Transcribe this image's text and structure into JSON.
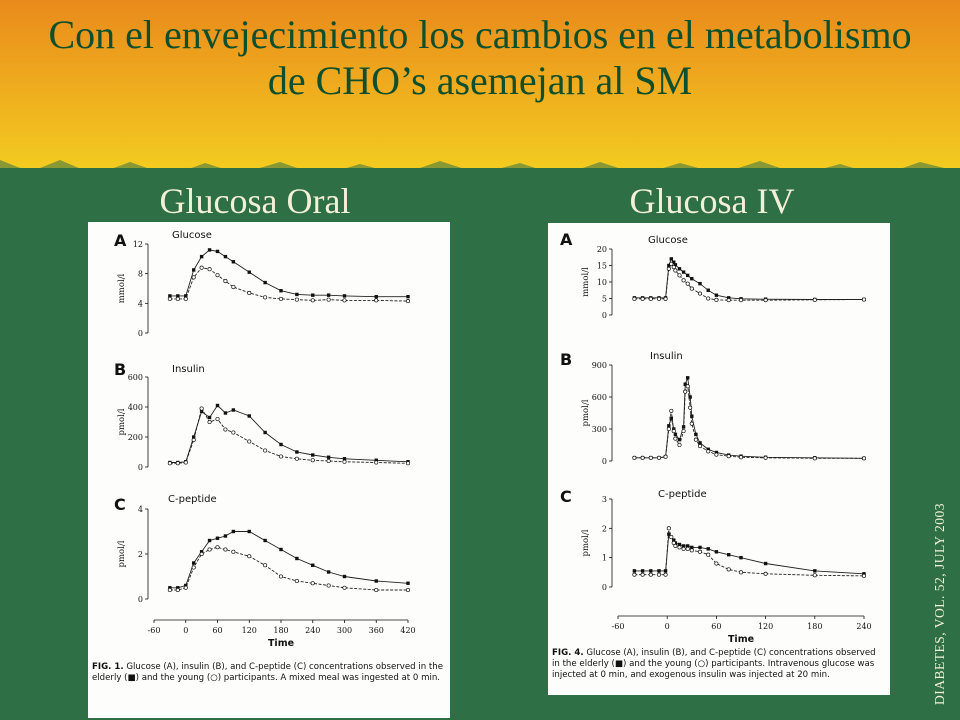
{
  "title": "Con el envejecimiento los cambios en el metabolismo de CHO’s asemejan al SM",
  "headers": {
    "left": "Glucosa Oral",
    "right": "Glucosa IV"
  },
  "source": "DIABETES, VOL. 52, JULY 2003",
  "colors": {
    "green": "#2f6f45",
    "orange": "#e8951c",
    "yellow": "#f1c31c",
    "title": "#0f4f2c"
  },
  "captions": {
    "left": {
      "label": "FIG. 1.",
      "text": "Glucose (A), insulin (B), and C-peptide (C) concentrations observed in the elderly (■) and the young (○) participants. A mixed meal was ingested at 0 min."
    },
    "right": {
      "label": "FIG. 4.",
      "text": "Glucose (A), insulin (B), and C-peptide (C) concentrations observed in the elderly (■) and the young (○) participants. Intravenous glucose was injected at 0 min, and exogenous insulin was injected at 20 min."
    }
  },
  "chart_data": [
    {
      "type": "line",
      "figure": "FIG. 1.",
      "xlabel": "Time",
      "xlim": [
        -60,
        420
      ],
      "xticks": [
        -60,
        0,
        60,
        120,
        180,
        240,
        300,
        360,
        420
      ],
      "panels": [
        {
          "letter": "A",
          "title": "Glucose",
          "ylabel": "mmol/l",
          "ylim": [
            0,
            12
          ],
          "yticks": [
            0,
            4,
            8,
            12
          ],
          "x": [
            -30,
            -15,
            0,
            15,
            30,
            45,
            60,
            75,
            90,
            120,
            150,
            180,
            210,
            240,
            270,
            300,
            360,
            420
          ],
          "series": [
            {
              "name": "elderly",
              "marker": "square",
              "values": [
                5.0,
                5.0,
                5.0,
                8.5,
                10.3,
                11.2,
                11.0,
                10.3,
                9.6,
                8.2,
                6.8,
                5.7,
                5.2,
                5.1,
                5.1,
                5.0,
                4.9,
                4.9
              ]
            },
            {
              "name": "young",
              "marker": "circle",
              "values": [
                4.6,
                4.6,
                4.6,
                7.5,
                8.8,
                8.6,
                7.8,
                7.0,
                6.2,
                5.4,
                4.8,
                4.6,
                4.5,
                4.4,
                4.5,
                4.4,
                4.4,
                4.3
              ]
            }
          ]
        },
        {
          "letter": "B",
          "title": "Insulin",
          "ylabel": "pmol/l",
          "ylim": [
            0,
            600
          ],
          "yticks": [
            0,
            200,
            400,
            600
          ],
          "x": [
            -30,
            -15,
            0,
            15,
            30,
            45,
            60,
            75,
            90,
            120,
            150,
            180,
            210,
            240,
            270,
            300,
            360,
            420
          ],
          "series": [
            {
              "name": "elderly",
              "marker": "square",
              "values": [
                30,
                30,
                35,
                200,
                370,
                330,
                410,
                360,
                380,
                340,
                230,
                150,
                100,
                80,
                65,
                55,
                45,
                35
              ]
            },
            {
              "name": "young",
              "marker": "circle",
              "values": [
                25,
                25,
                30,
                180,
                390,
                300,
                320,
                250,
                230,
                170,
                110,
                70,
                55,
                45,
                40,
                35,
                30,
                25
              ]
            }
          ]
        },
        {
          "letter": "C",
          "title": "C-peptide",
          "ylabel": "pmol/l",
          "ylim": [
            0,
            4
          ],
          "yticks": [
            0,
            2,
            4
          ],
          "x": [
            -30,
            -15,
            0,
            15,
            30,
            45,
            60,
            75,
            90,
            120,
            150,
            180,
            210,
            240,
            270,
            300,
            360,
            420
          ],
          "series": [
            {
              "name": "elderly",
              "marker": "square",
              "values": [
                0.5,
                0.5,
                0.6,
                1.6,
                2.1,
                2.6,
                2.7,
                2.8,
                3.0,
                3.0,
                2.6,
                2.2,
                1.8,
                1.5,
                1.2,
                1.0,
                0.8,
                0.7
              ]
            },
            {
              "name": "young",
              "marker": "circle",
              "values": [
                0.4,
                0.4,
                0.5,
                1.4,
                2.0,
                2.2,
                2.3,
                2.2,
                2.1,
                1.9,
                1.5,
                1.0,
                0.8,
                0.7,
                0.6,
                0.5,
                0.4,
                0.4
              ]
            }
          ]
        }
      ]
    },
    {
      "type": "line",
      "figure": "FIG. 4.",
      "xlabel": "Time",
      "xlim": [
        -60,
        240
      ],
      "xticks": [
        -60,
        0,
        60,
        120,
        180,
        240
      ],
      "panels": [
        {
          "letter": "A",
          "title": "Glucose",
          "ylabel": "mmol/l",
          "ylim": [
            0,
            20
          ],
          "yticks": [
            0,
            5,
            10,
            15,
            20
          ],
          "x": [
            -40,
            -30,
            -20,
            -10,
            -2,
            2,
            5,
            8,
            10,
            15,
            20,
            25,
            30,
            40,
            50,
            60,
            75,
            90,
            120,
            180,
            240
          ],
          "series": [
            {
              "name": "elderly",
              "marker": "square",
              "values": [
                5.2,
                5.2,
                5.2,
                5.2,
                5.2,
                15.0,
                17.0,
                16.0,
                15.2,
                14.0,
                13.0,
                12.0,
                11.0,
                9.5,
                7.5,
                6.0,
                5.2,
                4.9,
                4.8,
                4.7,
                4.7
              ]
            },
            {
              "name": "young",
              "marker": "circle",
              "values": [
                4.9,
                4.9,
                4.9,
                4.9,
                4.9,
                14.0,
                15.5,
                14.5,
                13.5,
                12.0,
                10.5,
                9.5,
                8.0,
                6.5,
                5.0,
                4.6,
                4.5,
                4.5,
                4.5,
                4.6,
                4.7
              ]
            }
          ]
        },
        {
          "letter": "B",
          "title": "Insulin",
          "ylabel": "pmol/l",
          "ylim": [
            0,
            900
          ],
          "yticks": [
            0,
            300,
            600,
            900
          ],
          "x": [
            -40,
            -30,
            -20,
            -10,
            -2,
            2,
            5,
            8,
            10,
            15,
            20,
            22,
            25,
            28,
            30,
            35,
            40,
            50,
            60,
            75,
            90,
            120,
            180,
            240
          ],
          "series": [
            {
              "name": "elderly",
              "marker": "square",
              "values": [
                30,
                30,
                30,
                30,
                40,
                330,
                400,
                300,
                250,
                200,
                320,
                720,
                780,
                600,
                420,
                250,
                170,
                110,
                80,
                55,
                45,
                35,
                30,
                25
              ]
            },
            {
              "name": "young",
              "marker": "circle",
              "values": [
                30,
                30,
                30,
                30,
                40,
                300,
                470,
                280,
                210,
                150,
                280,
                650,
                700,
                500,
                350,
                200,
                140,
                90,
                60,
                45,
                35,
                30,
                25,
                25
              ]
            }
          ]
        },
        {
          "letter": "C",
          "title": "C-peptide",
          "ylabel": "pmol/l",
          "ylim": [
            0,
            3
          ],
          "yticks": [
            0,
            1,
            2,
            3
          ],
          "x": [
            -40,
            -30,
            -20,
            -10,
            -2,
            2,
            5,
            8,
            10,
            15,
            20,
            25,
            30,
            40,
            50,
            60,
            75,
            90,
            120,
            180,
            240
          ],
          "series": [
            {
              "name": "elderly",
              "marker": "square",
              "values": [
                0.55,
                0.55,
                0.55,
                0.55,
                0.55,
                1.8,
                1.7,
                1.6,
                1.5,
                1.45,
                1.4,
                1.4,
                1.35,
                1.35,
                1.3,
                1.2,
                1.1,
                1.0,
                0.8,
                0.55,
                0.45
              ]
            },
            {
              "name": "young",
              "marker": "circle",
              "values": [
                0.42,
                0.42,
                0.42,
                0.42,
                0.42,
                2.0,
                1.7,
                1.5,
                1.4,
                1.35,
                1.3,
                1.3,
                1.25,
                1.2,
                1.1,
                0.8,
                0.6,
                0.5,
                0.45,
                0.4,
                0.38
              ]
            }
          ]
        }
      ]
    }
  ]
}
